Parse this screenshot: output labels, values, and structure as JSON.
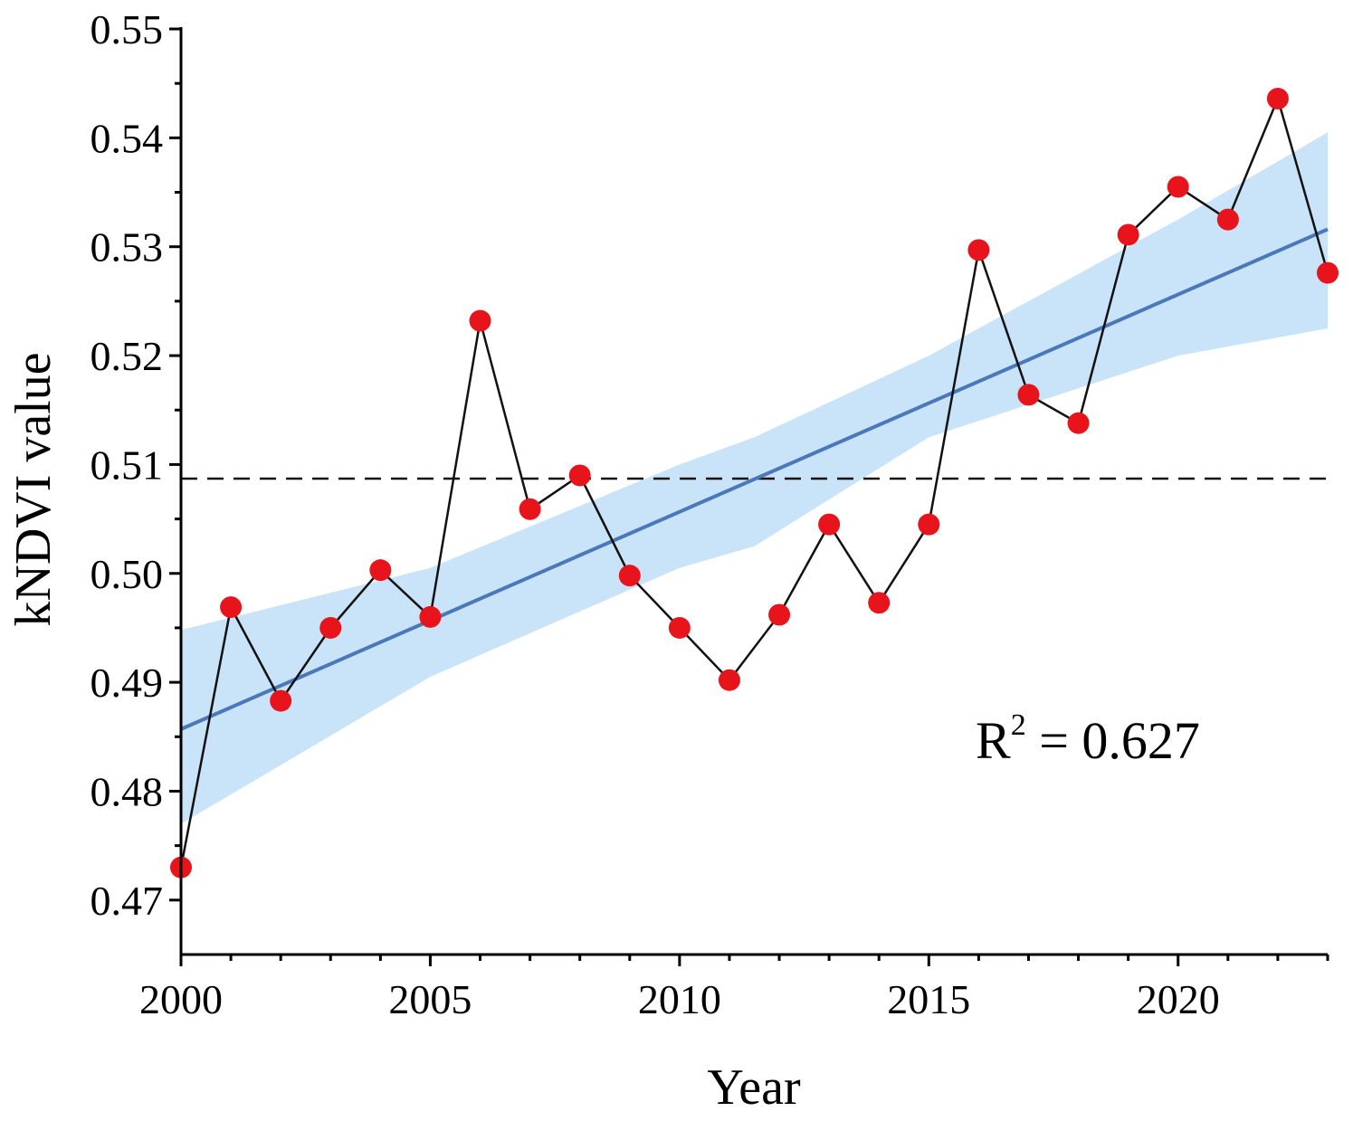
{
  "chart_data": {
    "type": "line",
    "title": "",
    "xlabel": "Year",
    "ylabel": "kNDVI value",
    "xlim": [
      2000,
      2023
    ],
    "ylim": [
      0.465,
      0.55
    ],
    "x_ticks": [
      2000,
      2005,
      2010,
      2015,
      2020
    ],
    "x_tick_labels": [
      "2000",
      "2005",
      "2010",
      "2015",
      "2020"
    ],
    "y_ticks": [
      0.47,
      0.48,
      0.49,
      0.5,
      0.51,
      0.52,
      0.53,
      0.54,
      0.55
    ],
    "y_tick_labels": [
      "0.47",
      "0.48",
      "0.49",
      "0.50",
      "0.51",
      "0.52",
      "0.53",
      "0.54",
      "0.55"
    ],
    "grid": false,
    "series": [
      {
        "name": "kNDVI",
        "x": [
          2000,
          2001,
          2002,
          2003,
          2004,
          2005,
          2006,
          2007,
          2008,
          2009,
          2010,
          2011,
          2012,
          2013,
          2014,
          2015,
          2016,
          2017,
          2018,
          2019,
          2020,
          2021,
          2022,
          2023
        ],
        "values": [
          0.473,
          0.4969,
          0.4883,
          0.495,
          0.5003,
          0.496,
          0.5232,
          0.5059,
          0.509,
          0.4998,
          0.495,
          0.4902,
          0.4962,
          0.5045,
          0.4973,
          0.5045,
          0.5297,
          0.5164,
          0.5138,
          0.5311,
          0.5355,
          0.5325,
          0.5436,
          0.5276
        ]
      }
    ],
    "trend": {
      "start": [
        2000,
        0.4857
      ],
      "end": [
        2023,
        0.5316
      ]
    },
    "confidence_band": {
      "x": [
        2000,
        2005,
        2010,
        2011.5,
        2015,
        2020,
        2023
      ],
      "upper": [
        0.4948,
        0.5005,
        0.51,
        0.5125,
        0.52,
        0.5325,
        0.5405
      ],
      "lower": [
        0.477,
        0.4905,
        0.5005,
        0.5025,
        0.5125,
        0.52,
        0.5225
      ]
    },
    "mean_line": 0.5087,
    "annotation": {
      "base": "R",
      "superscript": "2",
      "text": " = 0.627"
    },
    "colors": {
      "points": "#e8141c",
      "line": "#111111",
      "trend": "#4a78b8",
      "band": "#c9e3f8",
      "mean": "#111111"
    }
  }
}
